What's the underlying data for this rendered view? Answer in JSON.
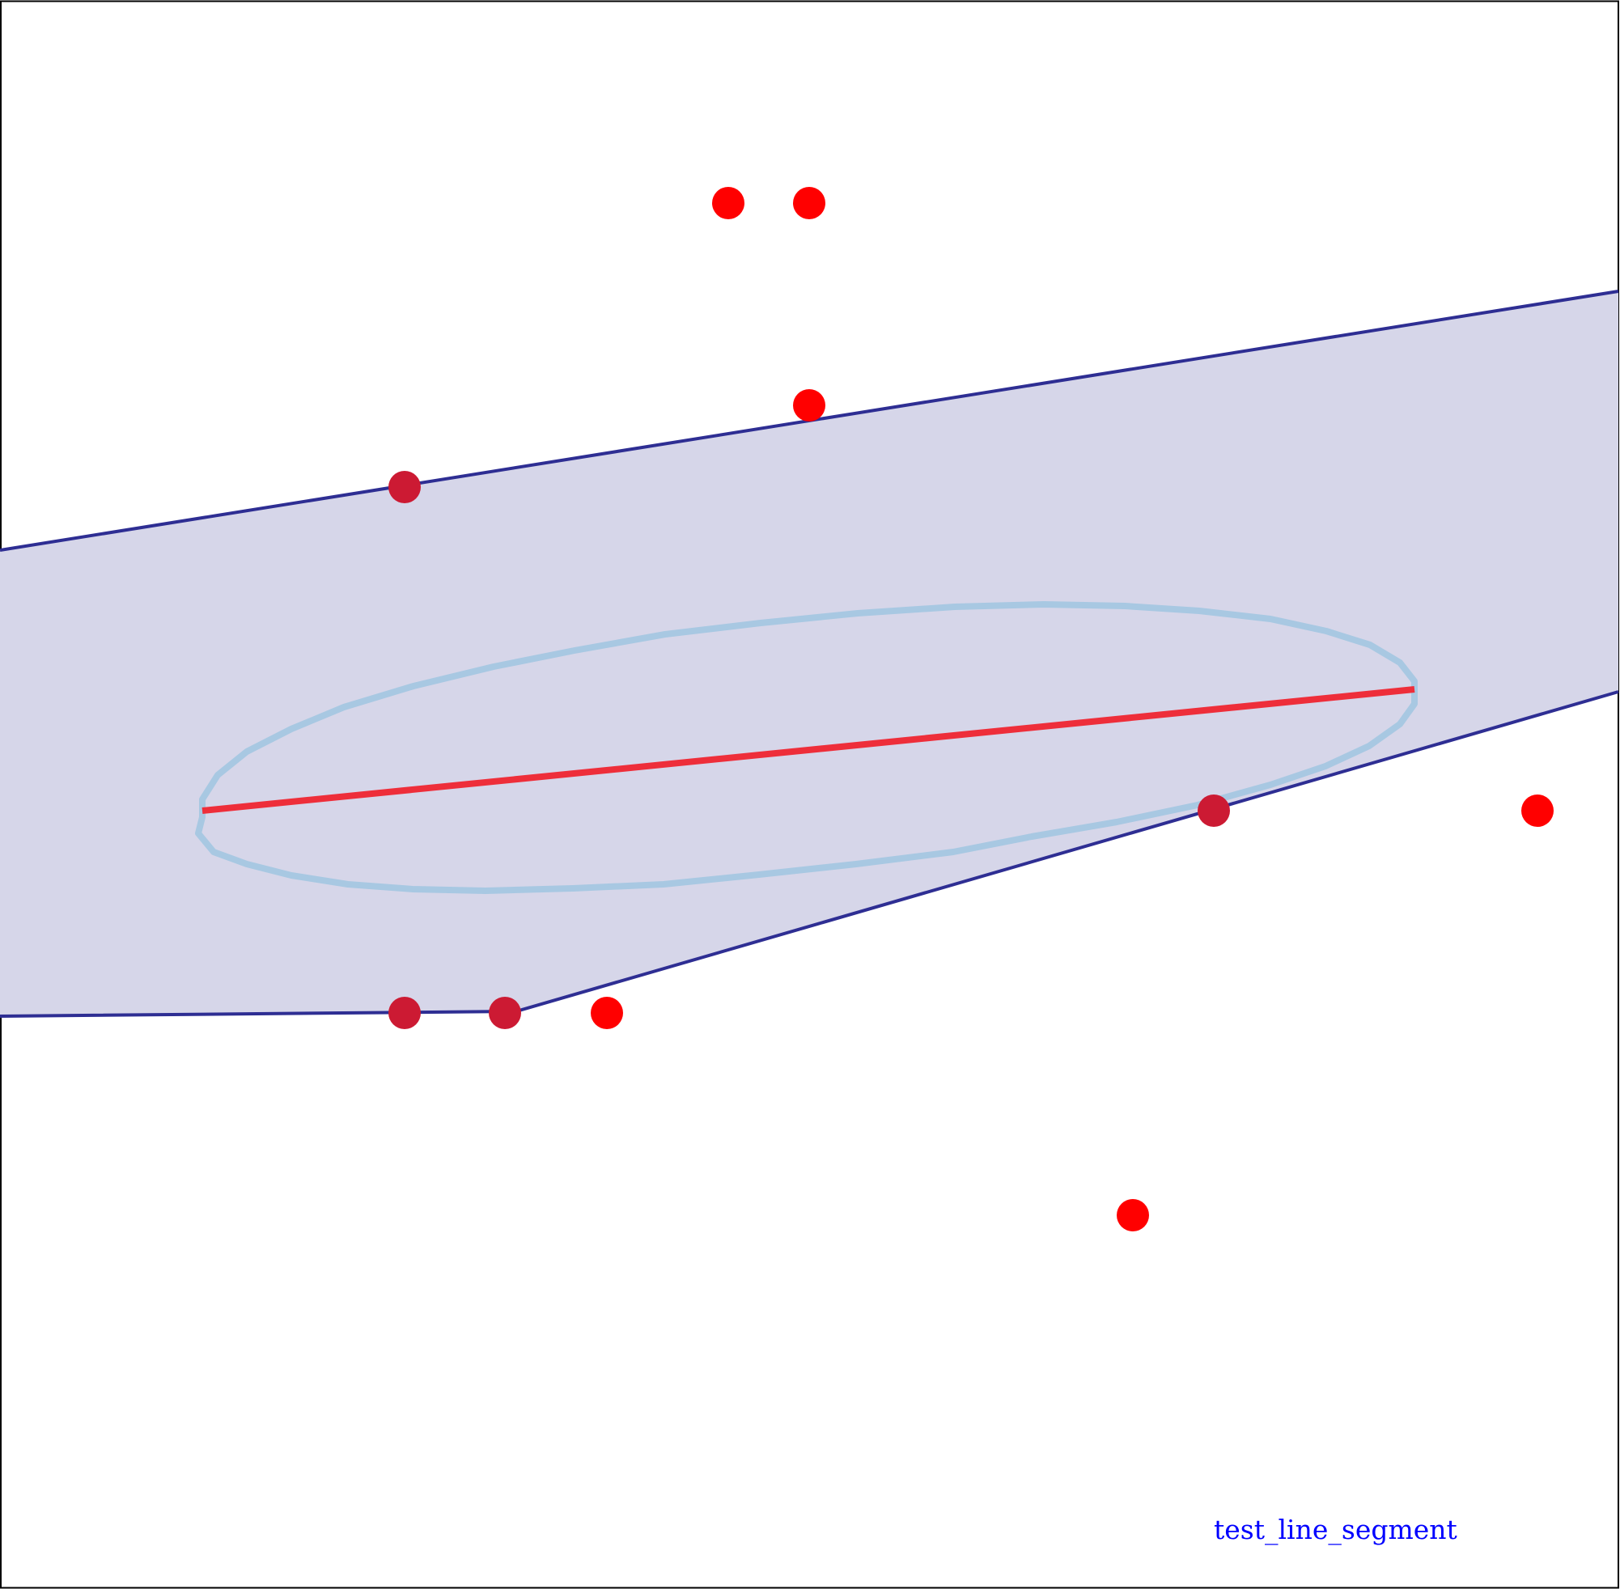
{
  "figure": {
    "caption": "test_line_segment",
    "colors": {
      "background": "#ffffff",
      "frame": "#000000",
      "band_fill": "#d6d6e9",
      "band_stroke": "#2e2e93",
      "ellipse_stroke": "#a8c8e2",
      "segment": "#ee2e3a",
      "point": "#ff0000",
      "point_inside": "#cc1a33",
      "caption": "#0000ff"
    }
  }
}
